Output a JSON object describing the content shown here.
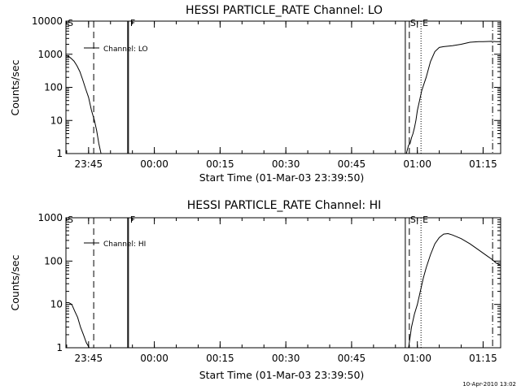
{
  "timestamp": "10-Apr-2010 13:02",
  "chart_data": [
    {
      "type": "line",
      "title": "HESSI PARTICLE_RATE Channel: LO",
      "xlabel": "Start Time (01-Mar-03 23:39:50)",
      "ylabel": "Counts/sec",
      "yscale": "log",
      "xlim": [
        "23:39:50",
        "01:19:00"
      ],
      "ylim": [
        1,
        10000
      ],
      "x_ticks": [
        "23:45",
        "00:00",
        "00:15",
        "00:30",
        "00:45",
        "01:00",
        "01:15"
      ],
      "y_ticks": [
        "1",
        "10",
        "100",
        "1000",
        "10000"
      ],
      "legend": "Channel: LO",
      "legend_position": "top-left",
      "series": [
        {
          "x": [
            "23:39:50",
            "23:40:30",
            "23:41:00",
            "23:41:40",
            "23:42:20",
            "23:43:00",
            "23:43:40",
            "23:44:20",
            "23:45:00",
            "23:45:40",
            "23:46:20",
            "23:46:50",
            "23:47:20",
            "23:47:50"
          ],
          "y": [
            900,
            850,
            750,
            620,
            450,
            300,
            170,
            90,
            50,
            20,
            10,
            5,
            2,
            1
          ]
        },
        {
          "x": [
            "00:57:00",
            "00:57:30",
            "00:58:00",
            "00:58:20",
            "00:58:40",
            "00:59:00",
            "00:59:20",
            "00:59:40",
            "01:00:00",
            "01:00:30",
            "01:01:00",
            "01:02:00",
            "01:03:00",
            "01:04:00",
            "01:05:00",
            "01:06:00",
            "01:08:00",
            "01:10:00",
            "01:12:00",
            "01:14:00",
            "01:15:00",
            "01:17:00",
            "01:18:00",
            "01:19:00"
          ],
          "y": [
            1,
            1,
            1.8,
            2,
            3,
            4,
            6,
            10,
            20,
            40,
            80,
            200,
            600,
            1200,
            1600,
            1700,
            1800,
            2000,
            2300,
            2400,
            2400,
            2450,
            2400,
            2400
          ]
        }
      ]
    },
    {
      "type": "line",
      "title": "HESSI PARTICLE_RATE Channel: HI",
      "xlabel": "Start Time (01-Mar-03 23:39:50)",
      "ylabel": "Counts/sec",
      "yscale": "log",
      "xlim": [
        "23:39:50",
        "01:19:00"
      ],
      "ylim": [
        1,
        1000
      ],
      "x_ticks": [
        "23:45",
        "00:00",
        "00:15",
        "00:30",
        "00:45",
        "01:00",
        "01:15"
      ],
      "y_ticks": [
        "1",
        "10",
        "100",
        "1000"
      ],
      "legend": "Channel: HI",
      "legend_position": "top-left",
      "series": [
        {
          "x": [
            "23:39:50",
            "23:40:30",
            "23:41:10",
            "23:41:50",
            "23:42:30",
            "23:43:10",
            "23:43:50",
            "23:44:30",
            "23:45:10"
          ],
          "y": [
            11,
            11,
            10,
            7,
            5,
            3,
            2,
            1.3,
            1
          ]
        },
        {
          "x": [
            "00:58:00",
            "00:58:40",
            "00:59:20",
            "01:00:00",
            "01:00:40",
            "01:01:20",
            "01:02:00",
            "01:03:00",
            "01:04:00",
            "01:05:00",
            "01:06:00",
            "01:07:00",
            "01:08:00",
            "01:10:00",
            "01:12:00",
            "01:14:00",
            "01:16:00",
            "01:17:00",
            "01:18:00",
            "01:19:00"
          ],
          "y": [
            1,
            3,
            6,
            10,
            20,
            40,
            70,
            140,
            250,
            350,
            420,
            430,
            400,
            330,
            250,
            180,
            130,
            110,
            90,
            80
          ]
        }
      ]
    }
  ],
  "markers": {
    "solid": {
      "label": "F",
      "x": "23:53:55"
    },
    "dashed_left": {
      "label": "",
      "x": "23:46:10"
    },
    "eclipse_start": {
      "label": "S",
      "x": "00:58:10"
    },
    "eclipse_end": {
      "label": "E",
      "x": "01:00:50"
    },
    "start_label": "S",
    "start_x": "23:39:50",
    "dashdot": {
      "label": "",
      "x": "01:17:10"
    }
  }
}
